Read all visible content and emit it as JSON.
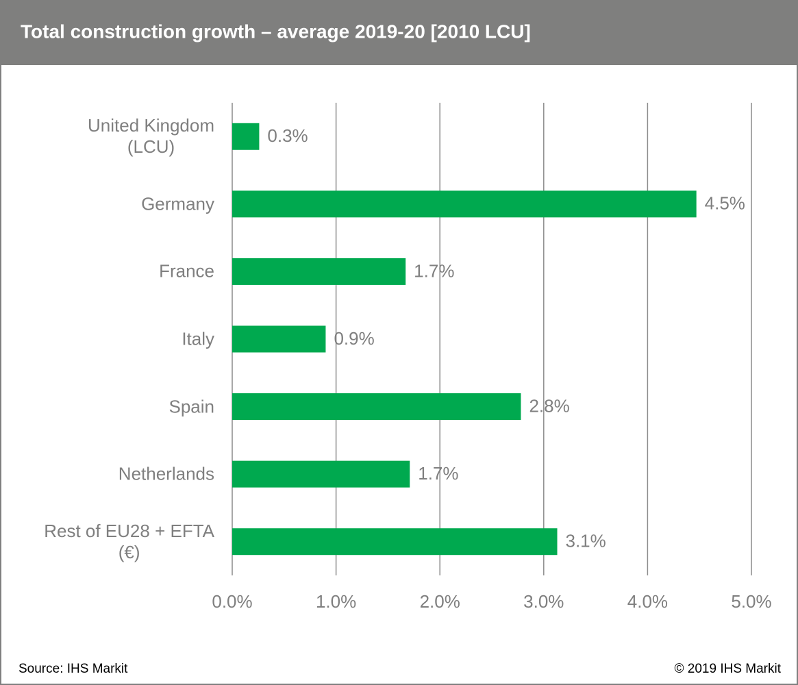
{
  "chart_data": {
    "type": "bar",
    "orientation": "horizontal",
    "title": "Total construction growth – average 2019-20 [2010 LCU]",
    "categories": [
      "United Kingdom\n(LCU)",
      "Germany",
      "France",
      "Italy",
      "Spain",
      "Netherlands",
      "Rest of EU28 + EFTA\n(€)"
    ],
    "values": [
      0.26,
      4.47,
      1.67,
      0.9,
      2.78,
      1.71,
      3.13
    ],
    "value_labels": [
      "0.3%",
      "4.5%",
      "1.7%",
      "0.9%",
      "2.8%",
      "1.7%",
      "3.1%"
    ],
    "color": "#00a94f",
    "xlim": [
      0,
      5
    ],
    "xticks": [
      {
        "value": 0,
        "label": "0.0%"
      },
      {
        "value": 1,
        "label": "1.0%"
      },
      {
        "value": 2,
        "label": "2.0%"
      },
      {
        "value": 3,
        "label": "3.0%"
      },
      {
        "value": 4,
        "label": "4.0%"
      },
      {
        "value": 5,
        "label": "5.0%"
      }
    ],
    "grid": true,
    "source": "Source: IHS Markit",
    "copyright": "© 2019 IHS Markit"
  }
}
